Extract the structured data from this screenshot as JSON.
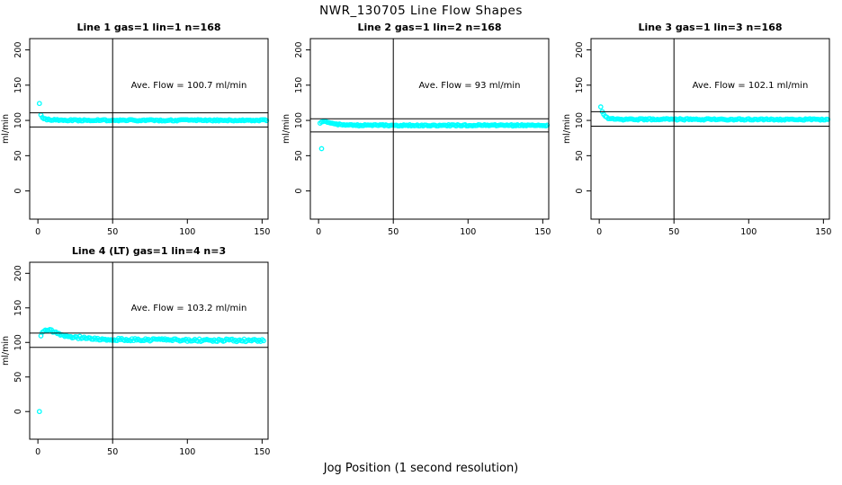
{
  "figure": {
    "title": "NWR_130705  Line Flow Shapes",
    "xlabel": "Jog Position (1 second resolution)",
    "background": "#FFFFFF",
    "marker_color": "#00FFFF",
    "line_color": "#000000"
  },
  "chart_data": {
    "type": "scatter",
    "title": "NWR_130705  Line Flow Shapes",
    "xlabel": "Jog Position (1 second resolution)",
    "ylabel": "ml/min",
    "x_ticks": [
      0,
      50,
      100,
      150
    ],
    "y_ticks": [
      0,
      50,
      100,
      150,
      200
    ],
    "xlim": [
      -5.5,
      154
    ],
    "ylim": [
      -40,
      216
    ],
    "grid": "off",
    "vline_x": 50,
    "marker": "open-circle",
    "panels": [
      {
        "title": "Line 1 gas=1 lin=1 n=168",
        "annotation": "Ave. Flow =  100.7  ml/min",
        "ave_flow": 100.7,
        "hlines": [
          110.77,
          90.63
        ],
        "outliers": [
          [
            1,
            124
          ]
        ],
        "trend_control_points": [
          [
            2,
            108
          ],
          [
            3,
            105
          ],
          [
            4,
            103
          ],
          [
            6,
            101.5
          ],
          [
            10,
            100.5
          ],
          [
            20,
            100.2
          ],
          [
            153,
            100.2
          ]
        ],
        "trend_step": 1,
        "noise": 0.9,
        "seed": 1,
        "row": 0,
        "col": 0
      },
      {
        "title": "Line 2 gas=1 lin=2 n=168",
        "annotation": "Ave. Flow =  93  ml/min",
        "ave_flow": 93,
        "hlines": [
          102.3,
          83.7
        ],
        "outliers": [
          [
            2,
            60
          ]
        ],
        "trend_control_points": [
          [
            1,
            96
          ],
          [
            2,
            97.5
          ],
          [
            3,
            99
          ],
          [
            5,
            98
          ],
          [
            8,
            96
          ],
          [
            12,
            94.5
          ],
          [
            18,
            93.5
          ],
          [
            25,
            93.1
          ],
          [
            153,
            93
          ]
        ],
        "trend_step": 1,
        "noise": 0.9,
        "seed": 2,
        "row": 0,
        "col": 1
      },
      {
        "title": "Line 3 gas=1 lin=3 n=168",
        "annotation": "Ave. Flow =  102.1  ml/min",
        "ave_flow": 102.1,
        "hlines": [
          112.31,
          91.89
        ],
        "outliers": [],
        "trend_control_points": [
          [
            1,
            118.5
          ],
          [
            2,
            113
          ],
          [
            3,
            108
          ],
          [
            5,
            104
          ],
          [
            8,
            102.3
          ],
          [
            15,
            101.6
          ],
          [
            153,
            101.4
          ]
        ],
        "trend_step": 1,
        "noise": 1.0,
        "seed": 3,
        "row": 0,
        "col": 2
      },
      {
        "title": "Line 4 (LT) gas=1 lin=4 n=3",
        "annotation": "Ave. Flow =  103.2  ml/min",
        "ave_flow": 103.2,
        "hlines": [
          113.52,
          92.88
        ],
        "outliers": [
          [
            1,
            0
          ]
        ],
        "trend_control_points": [
          [
            2,
            110
          ],
          [
            4,
            116
          ],
          [
            7,
            119
          ],
          [
            12,
            114
          ],
          [
            20,
            109
          ],
          [
            30,
            106.5
          ],
          [
            45,
            104.8
          ],
          [
            60,
            104
          ],
          [
            90,
            103.4
          ],
          [
            120,
            103.2
          ],
          [
            151,
            103
          ]
        ],
        "trend_step": 1,
        "noise": 1.8,
        "seed": 4,
        "row": 1,
        "col": 0
      }
    ]
  }
}
